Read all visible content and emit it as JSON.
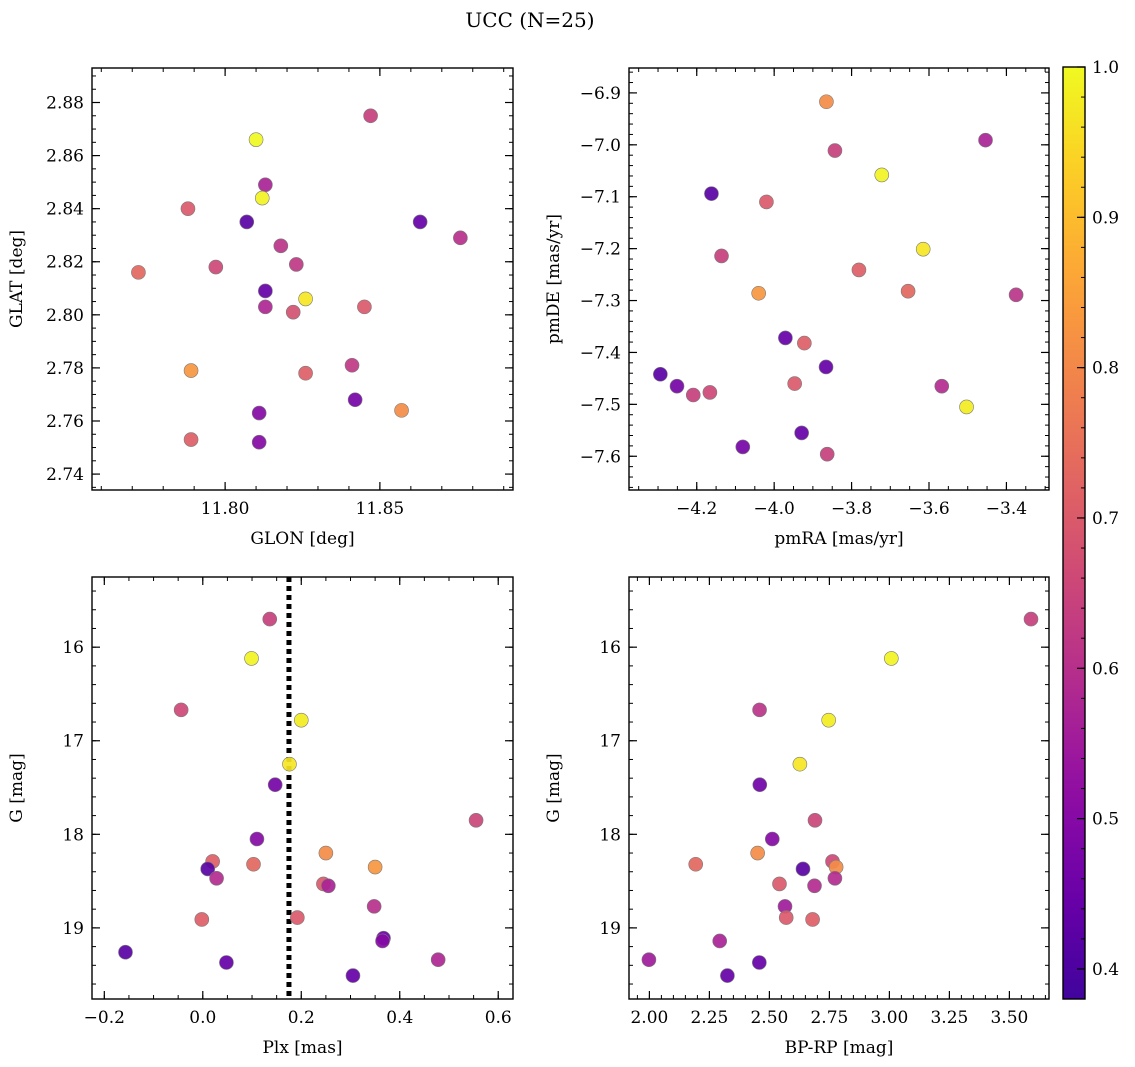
{
  "title": "UCC (N=25)",
  "colorbar": {
    "range": [
      0.38,
      1.0
    ],
    "ticks": [
      0.4,
      0.5,
      0.6,
      0.7,
      0.8,
      0.9,
      1.0
    ],
    "tick_labels": [
      "0.4",
      "0.5",
      "0.6",
      "0.7",
      "0.8",
      "0.9",
      "1.0"
    ],
    "colormap": "plasma"
  },
  "chart_data": [
    {
      "type": "scatter",
      "panel": "top-left",
      "xlabel": "GLON [deg]",
      "ylabel": "GLAT [deg]",
      "xlim": [
        11.757,
        11.893
      ],
      "ylim": [
        2.734,
        2.893
      ],
      "xticks": [
        11.8,
        11.85
      ],
      "xtick_labels": [
        "11.80",
        "11.85"
      ],
      "yticks": [
        2.74,
        2.76,
        2.78,
        2.8,
        2.82,
        2.84,
        2.86,
        2.88
      ],
      "ytick_labels": [
        "2.74",
        "2.76",
        "2.78",
        "2.80",
        "2.82",
        "2.84",
        "2.86",
        "2.88"
      ],
      "invert_y": false,
      "points": [
        {
          "x": 11.847,
          "y": 2.875,
          "c": 0.64
        },
        {
          "x": 11.81,
          "y": 2.866,
          "c": 1.0
        },
        {
          "x": 11.813,
          "y": 2.849,
          "c": 0.57
        },
        {
          "x": 11.812,
          "y": 2.844,
          "c": 0.99
        },
        {
          "x": 11.788,
          "y": 2.84,
          "c": 0.7
        },
        {
          "x": 11.807,
          "y": 2.835,
          "c": 0.42
        },
        {
          "x": 11.863,
          "y": 2.835,
          "c": 0.44
        },
        {
          "x": 11.876,
          "y": 2.829,
          "c": 0.6
        },
        {
          "x": 11.818,
          "y": 2.826,
          "c": 0.61
        },
        {
          "x": 11.823,
          "y": 2.819,
          "c": 0.62
        },
        {
          "x": 11.797,
          "y": 2.818,
          "c": 0.66
        },
        {
          "x": 11.772,
          "y": 2.816,
          "c": 0.73
        },
        {
          "x": 11.813,
          "y": 2.809,
          "c": 0.44
        },
        {
          "x": 11.826,
          "y": 2.806,
          "c": 0.97
        },
        {
          "x": 11.813,
          "y": 2.803,
          "c": 0.58
        },
        {
          "x": 11.845,
          "y": 2.803,
          "c": 0.7
        },
        {
          "x": 11.822,
          "y": 2.801,
          "c": 0.68
        },
        {
          "x": 11.841,
          "y": 2.781,
          "c": 0.62
        },
        {
          "x": 11.789,
          "y": 2.779,
          "c": 0.83
        },
        {
          "x": 11.826,
          "y": 2.778,
          "c": 0.71
        },
        {
          "x": 11.842,
          "y": 2.768,
          "c": 0.47
        },
        {
          "x": 11.857,
          "y": 2.764,
          "c": 0.81
        },
        {
          "x": 11.811,
          "y": 2.763,
          "c": 0.5
        },
        {
          "x": 11.789,
          "y": 2.753,
          "c": 0.71
        },
        {
          "x": 11.811,
          "y": 2.752,
          "c": 0.5
        }
      ]
    },
    {
      "type": "scatter",
      "panel": "top-right",
      "xlabel": "pmRA [mas/yr]",
      "ylabel": "pmDE [mas/yr]",
      "xlim": [
        -4.375,
        -3.29
      ],
      "ylim": [
        -7.665,
        -6.852
      ],
      "xticks": [
        -4.2,
        -4.0,
        -3.8,
        -3.6,
        -3.4
      ],
      "xtick_labels": [
        "−4.2",
        "−4.0",
        "−3.8",
        "−3.6",
        "−3.4"
      ],
      "yticks": [
        -7.6,
        -7.5,
        -7.4,
        -7.3,
        -7.2,
        -7.1,
        -7.0,
        -6.9
      ],
      "ytick_labels": [
        "−7.6",
        "−7.5",
        "−7.4",
        "−7.3",
        "−7.2",
        "−7.1",
        "−7.0",
        "−6.9"
      ],
      "invert_y": false,
      "points": [
        {
          "x": -3.865,
          "y": -6.917,
          "c": 0.81
        },
        {
          "x": -3.454,
          "y": -6.991,
          "c": 0.57
        },
        {
          "x": -3.843,
          "y": -7.011,
          "c": 0.64
        },
        {
          "x": -3.722,
          "y": -7.058,
          "c": 0.99
        },
        {
          "x": -4.162,
          "y": -7.094,
          "c": 0.42
        },
        {
          "x": -4.02,
          "y": -7.11,
          "c": 0.7
        },
        {
          "x": -3.615,
          "y": -7.201,
          "c": 0.97
        },
        {
          "x": -4.136,
          "y": -7.214,
          "c": 0.64
        },
        {
          "x": -3.781,
          "y": -7.241,
          "c": 0.71
        },
        {
          "x": -3.654,
          "y": -7.282,
          "c": 0.73
        },
        {
          "x": -4.04,
          "y": -7.286,
          "c": 0.83
        },
        {
          "x": -3.375,
          "y": -7.289,
          "c": 0.61
        },
        {
          "x": -3.971,
          "y": -7.372,
          "c": 0.44
        },
        {
          "x": -3.922,
          "y": -7.382,
          "c": 0.71
        },
        {
          "x": -3.866,
          "y": -7.428,
          "c": 0.44
        },
        {
          "x": -4.294,
          "y": -7.442,
          "c": 0.42
        },
        {
          "x": -3.947,
          "y": -7.46,
          "c": 0.7
        },
        {
          "x": -4.251,
          "y": -7.465,
          "c": 0.47
        },
        {
          "x": -3.567,
          "y": -7.465,
          "c": 0.59
        },
        {
          "x": -4.166,
          "y": -7.477,
          "c": 0.66
        },
        {
          "x": -4.209,
          "y": -7.482,
          "c": 0.64
        },
        {
          "x": -3.503,
          "y": -7.505,
          "c": 0.98
        },
        {
          "x": -3.929,
          "y": -7.555,
          "c": 0.44
        },
        {
          "x": -4.081,
          "y": -7.582,
          "c": 0.47
        },
        {
          "x": -3.863,
          "y": -7.596,
          "c": 0.64
        }
      ]
    },
    {
      "type": "scatter",
      "panel": "bottom-left",
      "xlabel": "Plx [mas]",
      "ylabel": "G [mag]",
      "xlim": [
        -0.225,
        0.63
      ],
      "ylim": [
        19.76,
        15.25
      ],
      "xticks": [
        -0.2,
        0.0,
        0.2,
        0.4,
        0.6
      ],
      "xtick_labels": [
        "−0.2",
        "0.0",
        "0.2",
        "0.4",
        "0.6"
      ],
      "yticks": [
        16,
        17,
        18,
        19
      ],
      "ytick_labels": [
        "16",
        "17",
        "18",
        "19"
      ],
      "invert_y": true,
      "vline": {
        "x": 0.175,
        "style": "dotted"
      },
      "points": [
        {
          "x": 0.136,
          "y": 15.7,
          "c": 0.64
        },
        {
          "x": 0.099,
          "y": 16.12,
          "c": 0.99
        },
        {
          "x": -0.044,
          "y": 16.67,
          "c": 0.66
        },
        {
          "x": 0.2,
          "y": 16.78,
          "c": 0.98
        },
        {
          "x": 0.176,
          "y": 17.25,
          "c": 0.97
        },
        {
          "x": 0.147,
          "y": 17.47,
          "c": 0.47
        },
        {
          "x": 0.555,
          "y": 17.85,
          "c": 0.65
        },
        {
          "x": 0.11,
          "y": 18.05,
          "c": 0.5
        },
        {
          "x": 0.25,
          "y": 18.2,
          "c": 0.81
        },
        {
          "x": 0.02,
          "y": 18.29,
          "c": 0.71
        },
        {
          "x": 0.103,
          "y": 18.32,
          "c": 0.73
        },
        {
          "x": 0.35,
          "y": 18.35,
          "c": 0.83
        },
        {
          "x": 0.01,
          "y": 18.37,
          "c": 0.42
        },
        {
          "x": 0.028,
          "y": 18.47,
          "c": 0.59
        },
        {
          "x": 0.245,
          "y": 18.53,
          "c": 0.7
        },
        {
          "x": 0.255,
          "y": 18.55,
          "c": 0.57
        },
        {
          "x": 0.348,
          "y": 18.77,
          "c": 0.6
        },
        {
          "x": 0.192,
          "y": 18.89,
          "c": 0.7
        },
        {
          "x": -0.002,
          "y": 18.91,
          "c": 0.71
        },
        {
          "x": 0.367,
          "y": 19.11,
          "c": 0.45
        },
        {
          "x": 0.365,
          "y": 19.14,
          "c": 0.5
        },
        {
          "x": -0.157,
          "y": 19.26,
          "c": 0.42
        },
        {
          "x": 0.478,
          "y": 19.34,
          "c": 0.58
        },
        {
          "x": 0.048,
          "y": 19.37,
          "c": 0.44
        },
        {
          "x": 0.305,
          "y": 19.51,
          "c": 0.44
        }
      ]
    },
    {
      "type": "scatter",
      "panel": "bottom-right",
      "xlabel": "BP-RP [mag]",
      "ylabel": "G [mag]",
      "xlim": [
        1.915,
        3.665
      ],
      "ylim": [
        19.76,
        15.25
      ],
      "xticks": [
        2.0,
        2.25,
        2.5,
        2.75,
        3.0,
        3.25,
        3.5
      ],
      "xtick_labels": [
        "2.00",
        "2.25",
        "2.50",
        "2.75",
        "3.00",
        "3.25",
        "3.50"
      ],
      "yticks": [
        16,
        17,
        18,
        19
      ],
      "ytick_labels": [
        "16",
        "17",
        "18",
        "19"
      ],
      "invert_y": true,
      "points": [
        {
          "x": 3.59,
          "y": 15.7,
          "c": 0.64
        },
        {
          "x": 3.008,
          "y": 16.12,
          "c": 0.99
        },
        {
          "x": 2.459,
          "y": 16.67,
          "c": 0.61
        },
        {
          "x": 2.747,
          "y": 16.78,
          "c": 0.98
        },
        {
          "x": 2.627,
          "y": 17.25,
          "c": 0.97
        },
        {
          "x": 2.46,
          "y": 17.47,
          "c": 0.46
        },
        {
          "x": 2.69,
          "y": 17.85,
          "c": 0.65
        },
        {
          "x": 2.512,
          "y": 18.05,
          "c": 0.5
        },
        {
          "x": 2.451,
          "y": 18.2,
          "c": 0.81
        },
        {
          "x": 2.763,
          "y": 18.29,
          "c": 0.66
        },
        {
          "x": 2.193,
          "y": 18.32,
          "c": 0.73
        },
        {
          "x": 2.778,
          "y": 18.35,
          "c": 0.81
        },
        {
          "x": 2.64,
          "y": 18.37,
          "c": 0.42
        },
        {
          "x": 2.773,
          "y": 18.47,
          "c": 0.59
        },
        {
          "x": 2.542,
          "y": 18.53,
          "c": 0.7
        },
        {
          "x": 2.688,
          "y": 18.55,
          "c": 0.59
        },
        {
          "x": 2.565,
          "y": 18.77,
          "c": 0.55
        },
        {
          "x": 2.57,
          "y": 18.89,
          "c": 0.7
        },
        {
          "x": 2.68,
          "y": 18.91,
          "c": 0.71
        },
        {
          "x": 2.293,
          "y": 19.14,
          "c": 0.57
        },
        {
          "x": 1.998,
          "y": 19.34,
          "c": 0.55
        },
        {
          "x": 2.458,
          "y": 19.37,
          "c": 0.44
        },
        {
          "x": 2.325,
          "y": 19.51,
          "c": 0.44
        }
      ]
    }
  ]
}
